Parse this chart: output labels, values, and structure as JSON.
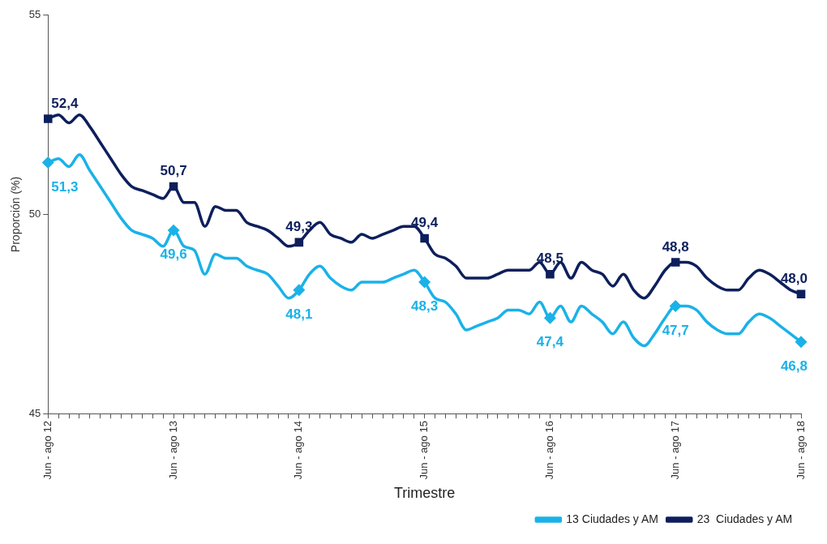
{
  "chart_data": {
    "type": "line",
    "xlabel": "Trimestre",
    "ylabel": "Proporción (%)",
    "categories": [
      "Jun - ago 12",
      null,
      null,
      null,
      null,
      null,
      null,
      null,
      null,
      null,
      null,
      null,
      "Jun - ago 13",
      null,
      null,
      null,
      null,
      null,
      null,
      null,
      null,
      null,
      null,
      null,
      "Jun - ago 14",
      null,
      null,
      null,
      null,
      null,
      null,
      null,
      null,
      null,
      null,
      null,
      "Jun - ago 15",
      null,
      null,
      null,
      null,
      null,
      null,
      null,
      null,
      null,
      null,
      null,
      "Jun - ago 16",
      null,
      null,
      null,
      null,
      null,
      null,
      null,
      null,
      null,
      null,
      null,
      "Jun - ago 17",
      null,
      null,
      null,
      null,
      null,
      null,
      null,
      null,
      null,
      null,
      null,
      "Jun - ago 18"
    ],
    "series": [
      {
        "name": "13 Ciudades y AM",
        "color": "#1ab2e8",
        "values": [
          51.3,
          51.4,
          51.2,
          51.5,
          51.1,
          50.7,
          50.3,
          49.9,
          49.6,
          49.5,
          49.4,
          49.2,
          49.6,
          49.2,
          49.1,
          48.5,
          49.0,
          48.9,
          48.9,
          48.7,
          48.6,
          48.5,
          48.2,
          47.9,
          48.1,
          48.5,
          48.7,
          48.4,
          48.2,
          48.1,
          48.3,
          48.3,
          48.3,
          48.4,
          48.5,
          48.6,
          48.3,
          47.9,
          47.8,
          47.5,
          47.1,
          47.2,
          47.3,
          47.4,
          47.6,
          47.6,
          47.5,
          47.8,
          47.4,
          47.7,
          47.3,
          47.7,
          47.5,
          47.3,
          47.0,
          47.3,
          46.9,
          46.7,
          47.0,
          47.4,
          47.7,
          47.7,
          47.6,
          47.3,
          47.1,
          47.0,
          47.0,
          47.3,
          47.5,
          47.4,
          47.2,
          47.0,
          46.8
        ],
        "value_labels": [
          "51,3",
          null,
          null,
          null,
          null,
          null,
          null,
          null,
          null,
          null,
          null,
          null,
          "49,6",
          null,
          null,
          null,
          null,
          null,
          null,
          null,
          null,
          null,
          null,
          null,
          "48,1",
          null,
          null,
          null,
          null,
          null,
          null,
          null,
          null,
          null,
          null,
          null,
          "48,3",
          null,
          null,
          null,
          null,
          null,
          null,
          null,
          null,
          null,
          null,
          null,
          "47,4",
          null,
          null,
          null,
          null,
          null,
          null,
          null,
          null,
          null,
          null,
          null,
          "47,7",
          null,
          null,
          null,
          null,
          null,
          null,
          null,
          null,
          null,
          null,
          null,
          "46,8"
        ]
      },
      {
        "name": "23  Ciudades y AM",
        "color": "#0d1f5c",
        "values": [
          52.4,
          52.5,
          52.3,
          52.5,
          52.2,
          51.8,
          51.4,
          51.0,
          50.7,
          50.6,
          50.5,
          50.4,
          50.7,
          50.3,
          50.3,
          49.7,
          50.2,
          50.1,
          50.1,
          49.8,
          49.7,
          49.6,
          49.4,
          49.2,
          49.3,
          49.6,
          49.8,
          49.5,
          49.4,
          49.3,
          49.5,
          49.4,
          49.5,
          49.6,
          49.7,
          49.7,
          49.4,
          49.0,
          48.9,
          48.7,
          48.4,
          48.4,
          48.4,
          48.5,
          48.6,
          48.6,
          48.6,
          48.8,
          48.5,
          48.8,
          48.4,
          48.8,
          48.6,
          48.5,
          48.2,
          48.5,
          48.1,
          47.9,
          48.2,
          48.6,
          48.8,
          48.8,
          48.7,
          48.4,
          48.2,
          48.1,
          48.1,
          48.4,
          48.6,
          48.5,
          48.3,
          48.1,
          48.0
        ],
        "value_labels": [
          "52,4",
          null,
          null,
          null,
          null,
          null,
          null,
          null,
          null,
          null,
          null,
          null,
          "50,7",
          null,
          null,
          null,
          null,
          null,
          null,
          null,
          null,
          null,
          null,
          null,
          "49,3",
          null,
          null,
          null,
          null,
          null,
          null,
          null,
          null,
          null,
          null,
          null,
          "49,4",
          null,
          null,
          null,
          null,
          null,
          null,
          null,
          null,
          null,
          null,
          null,
          "48,5",
          null,
          null,
          null,
          null,
          null,
          null,
          null,
          null,
          null,
          null,
          null,
          "48,8",
          null,
          null,
          null,
          null,
          null,
          null,
          null,
          null,
          null,
          null,
          null,
          "48,0"
        ]
      },
      {
        "type": "scatter",
        "color": "#1ab2e8",
        "marker": "diamond",
        "x": [
          "Jun - ago 12",
          "Jun - ago 13",
          "Jun - ago 14",
          "Jun - ago 15",
          "Jun - ago 16",
          "Jun - ago 17",
          "Jun - ago 18"
        ],
        "values": [
          51.3,
          49.6,
          48.1,
          48.3,
          47.4,
          47.7,
          46.8
        ]
      },
      {
        "type": "scatter",
        "color": "#0d1f5c",
        "marker": "square",
        "x": [
          "Jun - ago 12",
          "Jun - ago 13",
          "Jun - ago 14",
          "Jun - ago 15",
          "Jun - ago 16",
          "Jun - ago 17",
          "Jun - ago 18"
        ],
        "values": [
          52.4,
          50.7,
          49.3,
          49.4,
          48.5,
          48.8,
          48.0
        ]
      }
    ],
    "ylim": [
      45,
      55
    ],
    "yticks": [
      45,
      50,
      55
    ],
    "grid": false,
    "legend": "bottom right",
    "line_style": "solid"
  }
}
